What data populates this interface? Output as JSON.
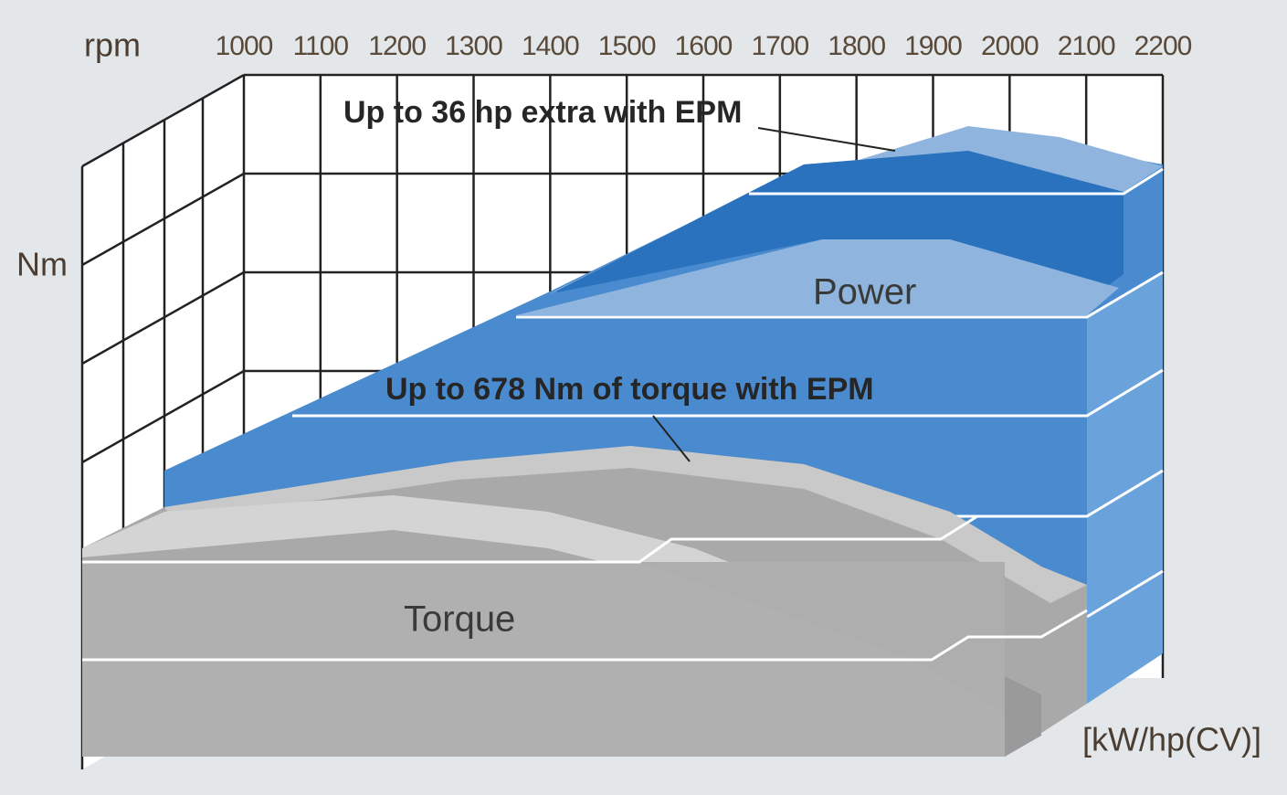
{
  "axis": {
    "x_label": "rpm",
    "y_label": "Nm",
    "y2_label": "[kW/hp(CV)]",
    "x_ticks": [
      1000,
      1100,
      1200,
      1300,
      1400,
      1500,
      1600,
      1700,
      1800,
      1900,
      2000,
      2100,
      2200
    ]
  },
  "labels": {
    "power": "Power",
    "torque": "Torque"
  },
  "annotations": {
    "power_epm": "Up to 36 hp extra with EPM",
    "torque_epm": "Up to 678 Nm of torque with EPM"
  }
}
